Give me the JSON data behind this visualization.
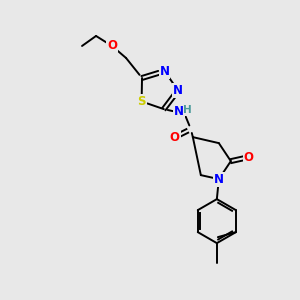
{
  "background_color": "#e8e8e8",
  "atom_colors": {
    "N": "#0000ff",
    "O": "#ff0000",
    "S": "#cccc00",
    "H": "#4a9a9a"
  },
  "figsize": [
    3.0,
    3.0
  ],
  "dpi": 100,
  "lw": 1.4,
  "fs": 8.5
}
